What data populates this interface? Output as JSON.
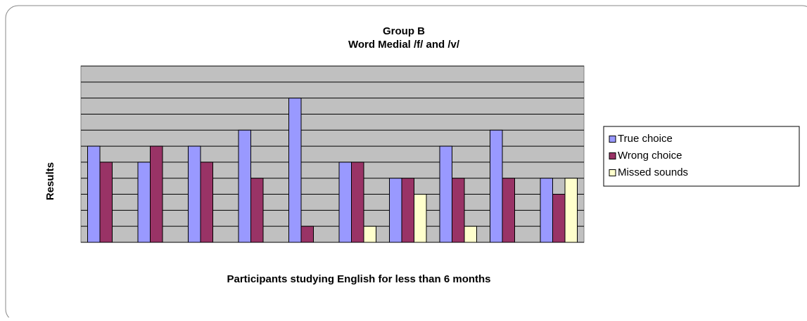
{
  "chart_data": {
    "type": "bar",
    "title": "Group B",
    "subtitle": "Word Medial /f/ and /v/",
    "x_label": "Participants studying English for less than 6 months",
    "y_label": "Results",
    "categories": [
      null,
      null,
      null,
      null,
      null,
      null,
      null,
      null,
      null,
      null
    ],
    "series": [
      {
        "name": "True choice",
        "color": "#9999ff",
        "values": [
          6,
          5,
          6,
          7,
          9,
          5,
          4,
          6,
          7,
          4
        ]
      },
      {
        "name": "Wrong choice",
        "color": "#993366",
        "values": [
          5,
          6,
          5,
          4,
          1,
          5,
          4,
          4,
          4,
          3
        ]
      },
      {
        "name": "Missed sounds",
        "color": "#ffffcc",
        "values": [
          0,
          0,
          0,
          0,
          0,
          1,
          3,
          1,
          0,
          4
        ]
      }
    ],
    "ylim": [
      0,
      11
    ],
    "yticks": [
      0,
      1,
      2,
      3,
      4,
      5,
      6,
      7,
      8,
      9,
      10,
      11
    ],
    "grid": true,
    "legend": "right"
  }
}
